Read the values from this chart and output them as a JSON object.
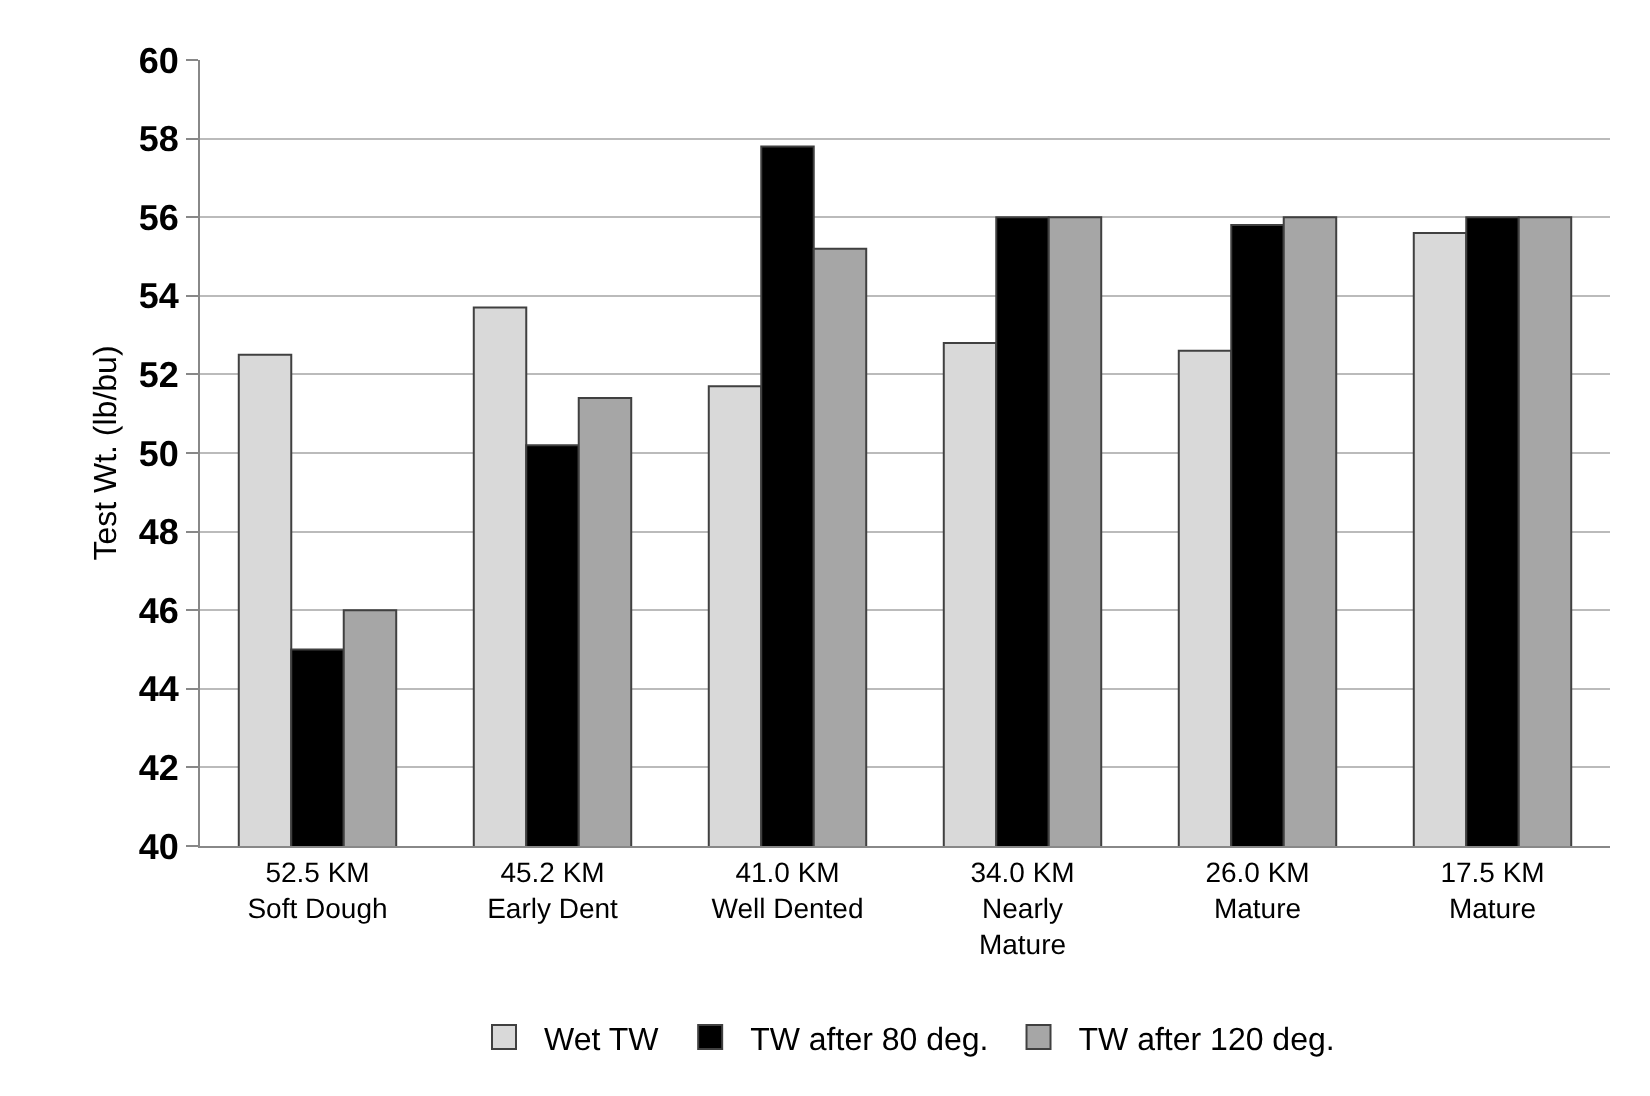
{
  "chart_data": {
    "type": "bar",
    "ylabel": "Test Wt. (lb/bu)",
    "categories": [
      "52.5 KM\nSoft Dough",
      "45.2 KM\nEarly Dent",
      "41.0 KM\nWell Dented",
      "34.0 KM\nNearly\nMature",
      "26.0 KM\nMature",
      "17.5 KM\nMature"
    ],
    "series": [
      {
        "name": "Wet TW",
        "color": "#d9d9d9",
        "values": [
          52.5,
          53.7,
          51.7,
          52.8,
          52.6,
          55.6
        ]
      },
      {
        "name": "TW after 80 deg.",
        "color": "#000000",
        "values": [
          45.0,
          50.2,
          57.8,
          56.0,
          55.8,
          56.0
        ]
      },
      {
        "name": "TW after 120 deg.",
        "color": "#a6a6a6",
        "values": [
          46.0,
          51.4,
          55.2,
          56.0,
          56.0,
          56.0
        ]
      }
    ],
    "ylim": [
      40,
      60
    ],
    "yticks": [
      40,
      42,
      44,
      46,
      48,
      50,
      52,
      54,
      56,
      58,
      60
    ],
    "grid": "y",
    "legend": "bottom"
  }
}
